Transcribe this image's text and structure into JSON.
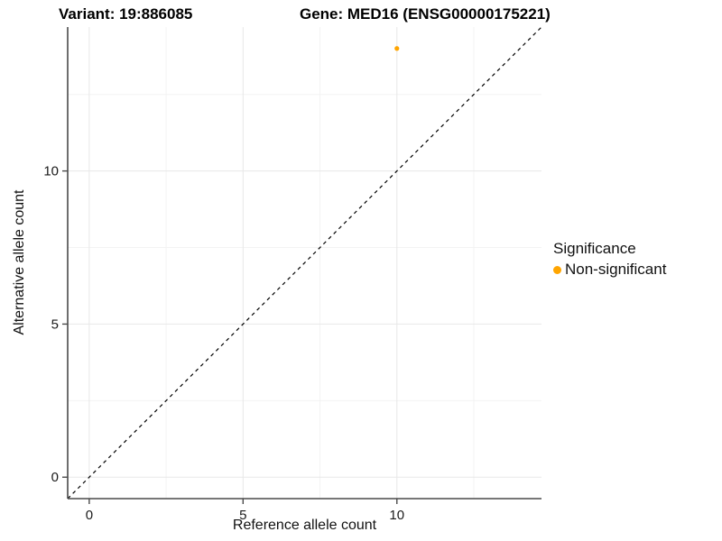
{
  "chart_data": {
    "type": "scatter",
    "titles": [
      "Variant: 19:886085",
      "Gene: MED16 (ENSG00000175221)"
    ],
    "xlabel": "Reference allele count",
    "ylabel": "Alternative allele count",
    "xlim": [
      -0.7,
      14.7
    ],
    "ylim": [
      -0.7,
      14.7
    ],
    "x_major_ticks": [
      0,
      5,
      10
    ],
    "y_major_ticks": [
      0,
      5,
      10
    ],
    "x_minor_ticks": [
      2.5,
      7.5,
      12.5
    ],
    "y_minor_ticks": [
      2.5,
      7.5,
      12.5
    ],
    "grid": "major and minor gridlines, light gray on white panel",
    "reference_line": {
      "type": "identity y=x",
      "style": "dashed",
      "color": "#000000"
    },
    "series": [
      {
        "name": "Non-significant",
        "color": "#FFA500",
        "point_radius": 2.6,
        "points": [
          [
            10,
            14
          ]
        ]
      }
    ],
    "legend": {
      "title": "Significance",
      "position": "right",
      "entries": [
        {
          "label": "Non-significant",
          "color": "#FFA500"
        }
      ]
    }
  },
  "colors": {
    "background": "#FFFFFF",
    "axis_line": "#4a4a4a",
    "grid_major": "#E8E8E8",
    "grid_minor": "#F3F3F3",
    "tick_label": "#1a1a1a",
    "dashed_line": "#000000"
  }
}
